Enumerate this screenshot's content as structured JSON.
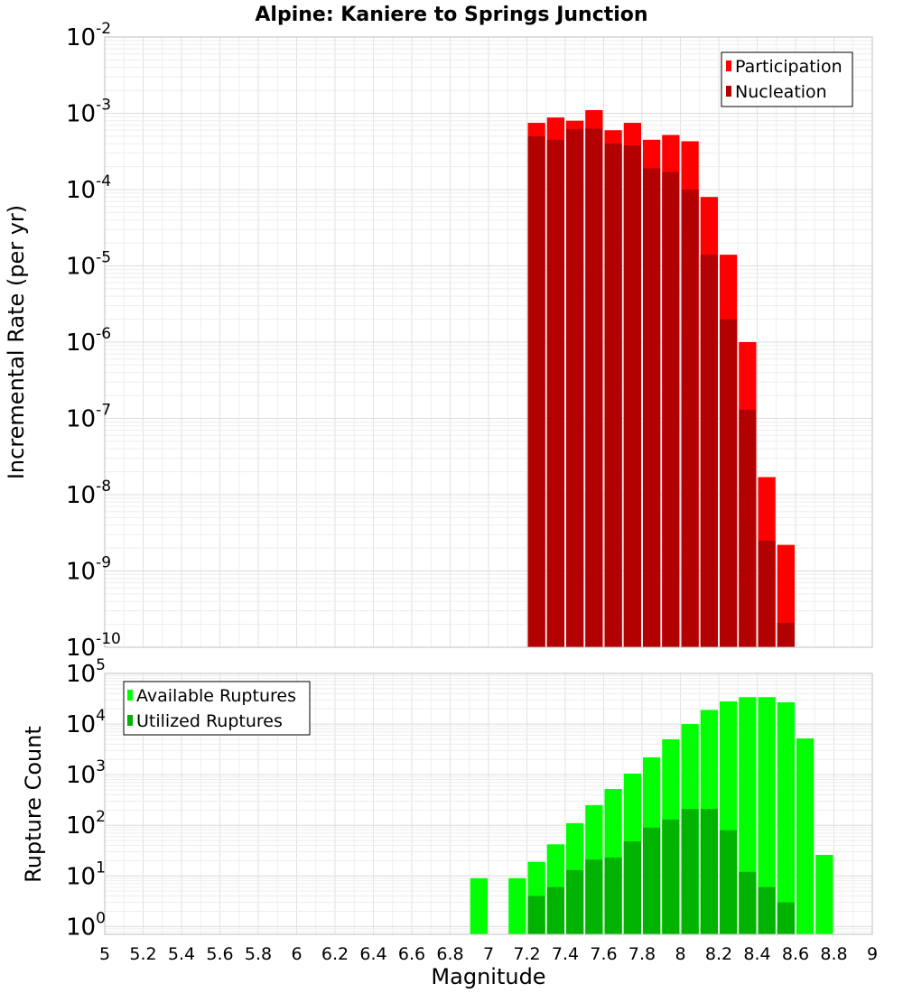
{
  "chart_data": [
    {
      "type": "bar",
      "title": "Alpine: Kaniere to Springs Junction",
      "xlabel": "Magnitude",
      "ylabel": "Incremental Rate (per yr)",
      "yscale": "log",
      "xlim": [
        5,
        9
      ],
      "ylim": [
        1e-10,
        0.01
      ],
      "y_ticks": [
        "10|-10",
        "10|-9",
        "10|-8",
        "10|-7",
        "10|-6",
        "10|-5",
        "10|-4",
        "10|-3",
        "10|-2"
      ],
      "grid": true,
      "legend_position": "top-right",
      "x": [
        7.25,
        7.35,
        7.45,
        7.55,
        7.65,
        7.75,
        7.85,
        7.95,
        8.05,
        8.15,
        8.25,
        8.35,
        8.45,
        8.55
      ],
      "series": [
        {
          "name": "Participation",
          "color": "#ff0000",
          "values": [
            0.00075,
            0.00088,
            0.0008,
            0.0011,
            0.0006,
            0.00075,
            0.00045,
            0.00052,
            0.00043,
            8e-05,
            1.4e-05,
            1e-06,
            1.7e-08,
            2.2e-09
          ]
        },
        {
          "name": "Nucleation",
          "color": "#b30000",
          "values": [
            0.0005,
            0.00045,
            0.00062,
            0.00063,
            0.0004,
            0.00038,
            0.00019,
            0.00017,
            0.0001,
            1.4e-05,
            2e-06,
            1.3e-07,
            2.5e-09,
            2.1e-10
          ]
        }
      ]
    },
    {
      "type": "bar",
      "xlabel": "Magnitude",
      "ylabel": "Rupture Count",
      "yscale": "log",
      "xlim": [
        5,
        9
      ],
      "ylim": [
        0.7,
        100000
      ],
      "y_ticks": [
        "10|0",
        "10|1",
        "10|2",
        "10|3",
        "10|4",
        "10|5"
      ],
      "x_ticks": [
        "5",
        "5.2",
        "5.4",
        "5.6",
        "5.8",
        "6",
        "6.2",
        "6.4",
        "6.6",
        "6.8",
        "7",
        "7.2",
        "7.4",
        "7.6",
        "7.8",
        "8",
        "8.2",
        "8.4",
        "8.6",
        "8.8",
        "9"
      ],
      "grid": true,
      "legend_position": "top-left",
      "x": [
        6.95,
        7.15,
        7.25,
        7.35,
        7.45,
        7.55,
        7.65,
        7.75,
        7.85,
        7.95,
        8.05,
        8.15,
        8.25,
        8.35,
        8.45,
        8.55,
        8.65,
        8.75
      ],
      "series": [
        {
          "name": "Available Ruptures",
          "color": "#00ff00",
          "values": [
            9,
            9,
            19,
            42,
            110,
            250,
            520,
            1050,
            2200,
            5000,
            10000,
            19000,
            28000,
            34000,
            34000,
            27000,
            5200,
            26
          ]
        },
        {
          "name": "Utilized Ruptures",
          "color": "#00b300",
          "values": [
            null,
            null,
            4,
            6,
            13,
            21,
            23,
            48,
            90,
            130,
            210,
            210,
            80,
            12,
            6,
            3,
            null,
            null
          ]
        }
      ]
    }
  ]
}
